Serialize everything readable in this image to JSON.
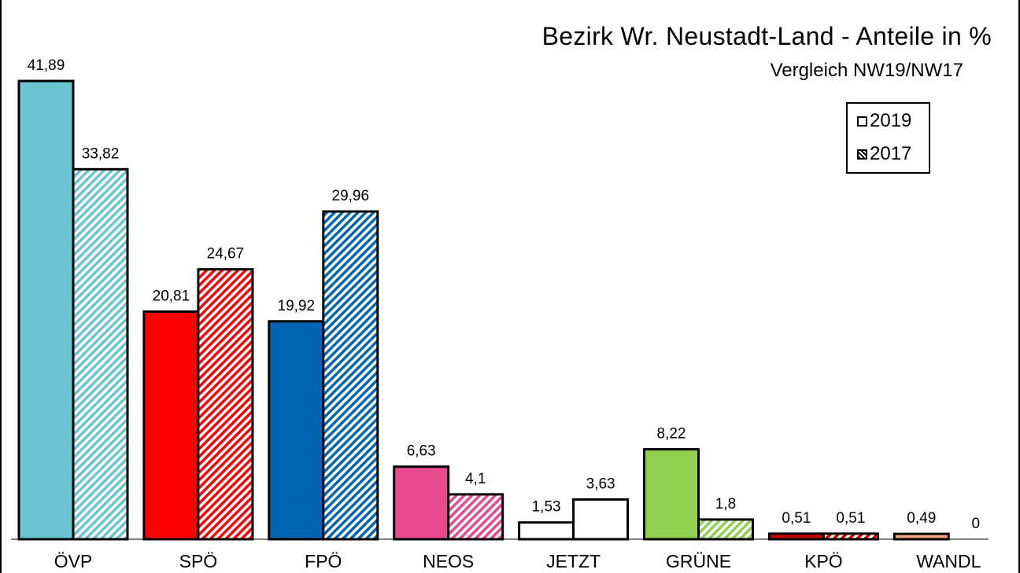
{
  "chart_data": {
    "type": "bar",
    "title": "Bezirk Wr. Neustadt-Land - Anteile in %",
    "subtitle": "Vergleich NW19/NW17",
    "categories": [
      "ÖVP",
      "SPÖ",
      "FPÖ",
      "NEOS",
      "JETZT",
      "GRÜNE",
      "KPÖ",
      "WANDL"
    ],
    "category_colors": [
      "#6ac5d1",
      "#ff0000",
      "#0066b3",
      "#e84a8d",
      "#ffffff",
      "#92d050",
      "#cc0000",
      "#f4a582"
    ],
    "series": [
      {
        "name": "2019",
        "fill": "solid",
        "values": [
          41.89,
          20.81,
          19.92,
          6.63,
          1.53,
          8.22,
          0.51,
          0.49
        ],
        "labels": [
          "41,89",
          "20,81",
          "19,92",
          "6,63",
          "1,53",
          "8,22",
          "0,51",
          "0,49"
        ]
      },
      {
        "name": "2017",
        "fill": "diagonal-stripes",
        "values": [
          33.82,
          24.67,
          29.96,
          4.1,
          3.63,
          1.8,
          0.51,
          0
        ],
        "labels": [
          "33,82",
          "24,67",
          "29,96",
          "4,1",
          "3,63",
          "1,8",
          "0,51",
          "0"
        ]
      }
    ],
    "ylim": [
      0,
      45
    ],
    "grid": false,
    "legend_position": "top-right"
  }
}
